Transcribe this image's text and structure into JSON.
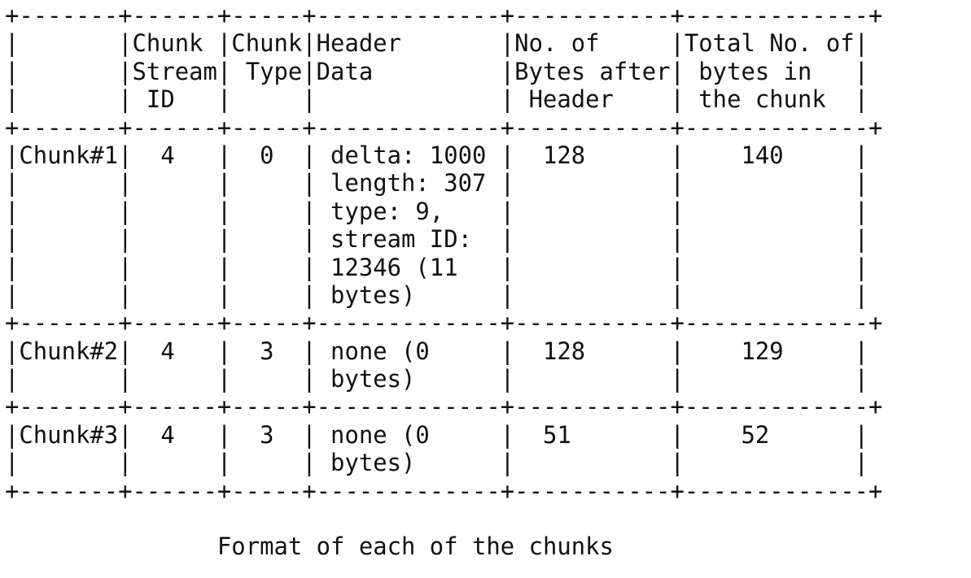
{
  "figure": {
    "lines": [
      "+-------+------+-----+-------------+-----------+-------------+",
      "|       |Chunk |Chunk|Header       |No. of     |Total No. of|",
      "|       |Stream| Type|Data         |Bytes after| bytes in   |",
      "|       | ID   |     |             | Header    | the chunk  |",
      "+-------+------+-----+-------------+-----------+-------------+",
      "|Chunk#1|  4   |  0  | delta: 1000 |  128      |    140     |",
      "|       |      |     | length: 307 |           |            |",
      "|       |      |     | type: 9,    |           |            |",
      "|       |      |     | stream ID:  |           |            |",
      "|       |      |     | 12346 (11   |           |            |",
      "|       |      |     | bytes)      |           |            |",
      "+-------+------+-----+-------------+-----------+-------------+",
      "|Chunk#2|  4   |  3  | none (0     |  128      |    129     |",
      "|       |      |     | bytes)      |           |            |",
      "+-------+------+-----+-------------+-----------+-------------+",
      "|Chunk#3|  4   |  3  | none (0     |  51       |    52      |",
      "|       |      |     | bytes)      |           |            |",
      "+-------+------+-----+-------------+-----------+-------------+",
      "",
      "               Format of each of the chunks"
    ]
  }
}
